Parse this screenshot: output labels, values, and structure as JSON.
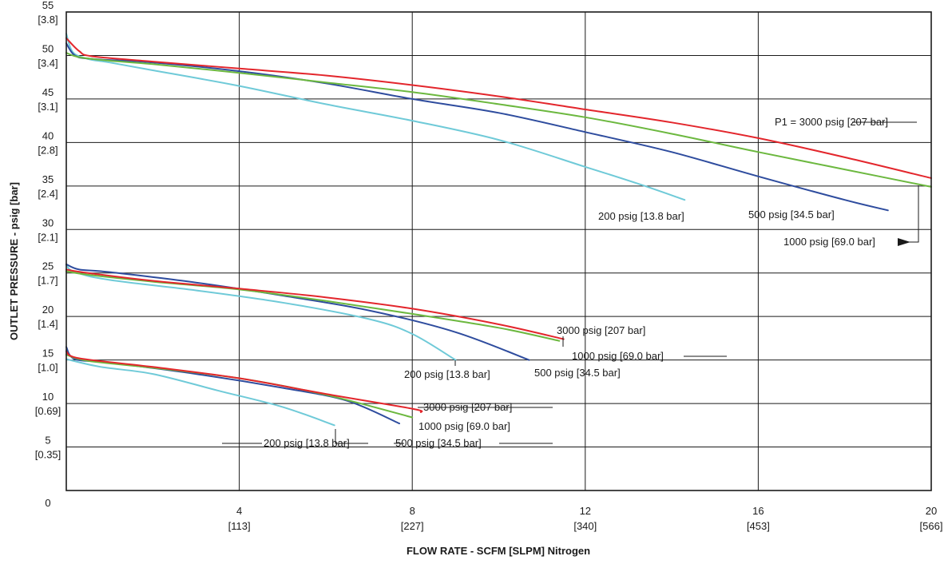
{
  "chart_data": {
    "type": "line",
    "xlabel": "FLOW RATE - SCFM [SLPM] Nitrogen",
    "ylabel": "OUTLET PRESSURE - psig [bar]",
    "xlim": [
      0,
      20
    ],
    "ylim": [
      0,
      55
    ],
    "grid": true,
    "x_ticks": [
      {
        "value": 4,
        "label": "4",
        "sub": "[113]"
      },
      {
        "value": 8,
        "label": "8",
        "sub": "[227]"
      },
      {
        "value": 12,
        "label": "12",
        "sub": "[340]"
      },
      {
        "value": 16,
        "label": "16",
        "sub": "[453]"
      },
      {
        "value": 20,
        "label": "20",
        "sub": "[566]"
      }
    ],
    "y_ticks": [
      {
        "value": 0,
        "label": "0",
        "sub": ""
      },
      {
        "value": 5,
        "label": "5",
        "sub": "[0.35]"
      },
      {
        "value": 10,
        "label": "10",
        "sub": "[0.69]"
      },
      {
        "value": 15,
        "label": "15",
        "sub": "[1.0]"
      },
      {
        "value": 20,
        "label": "20",
        "sub": "[1.4]"
      },
      {
        "value": 25,
        "label": "25",
        "sub": "[1.7]"
      },
      {
        "value": 30,
        "label": "30",
        "sub": "[2.1]"
      },
      {
        "value": 35,
        "label": "35",
        "sub": "[2.4]"
      },
      {
        "value": 40,
        "label": "40",
        "sub": "[2.8]"
      },
      {
        "value": 45,
        "label": "45",
        "sub": "[3.1]"
      },
      {
        "value": 50,
        "label": "50",
        "sub": "[3.4]"
      },
      {
        "value": 55,
        "label": "55",
        "sub": "[3.8]"
      }
    ],
    "colors": {
      "3000 psig": "#e3262c",
      "1000 psig": "#6cb83f",
      "500 psig": "#2e4c9e",
      "200 psig": "#6fcad8"
    },
    "series": [
      {
        "group": "50",
        "name": "3000 psig [207 bar]",
        "color": "#e3262c",
        "points": [
          [
            0,
            52.0
          ],
          [
            0.3,
            50.5
          ],
          [
            0.6,
            49.9
          ],
          [
            2,
            49.3
          ],
          [
            4,
            48.5
          ],
          [
            6,
            47.7
          ],
          [
            8,
            46.6
          ],
          [
            10,
            45.3
          ],
          [
            12,
            43.8
          ],
          [
            14,
            42.3
          ],
          [
            16,
            40.5
          ],
          [
            18,
            38.3
          ],
          [
            20,
            35.9
          ]
        ]
      },
      {
        "group": "50",
        "name": "1000 psig [69.0 bar]",
        "color": "#6cb83f",
        "points": [
          [
            0,
            50.3
          ],
          [
            0.3,
            49.8
          ],
          [
            1,
            49.4
          ],
          [
            2,
            49.0
          ],
          [
            4,
            48.0
          ],
          [
            6,
            46.9
          ],
          [
            8,
            45.8
          ],
          [
            10,
            44.4
          ],
          [
            12,
            42.9
          ],
          [
            14,
            41.0
          ],
          [
            16,
            38.9
          ],
          [
            18,
            36.9
          ],
          [
            20,
            34.9
          ]
        ]
      },
      {
        "group": "50",
        "name": "500 psig [34.5 bar]",
        "color": "#2e4c9e",
        "points": [
          [
            0,
            51.4
          ],
          [
            0.2,
            50.0
          ],
          [
            0.6,
            49.6
          ],
          [
            2,
            49.2
          ],
          [
            4,
            48.2
          ],
          [
            6,
            46.8
          ],
          [
            8,
            45.0
          ],
          [
            10,
            43.4
          ],
          [
            12,
            41.2
          ],
          [
            14,
            38.9
          ],
          [
            16,
            36.1
          ],
          [
            18,
            33.4
          ],
          [
            19,
            32.2
          ]
        ]
      },
      {
        "group": "50",
        "name": "200 psig [13.8 bar]",
        "color": "#6fcad8",
        "points": [
          [
            0,
            52.5
          ],
          [
            0.15,
            50.4
          ],
          [
            0.5,
            49.6
          ],
          [
            1,
            49.2
          ],
          [
            2,
            48.3
          ],
          [
            4,
            46.5
          ],
          [
            6,
            44.4
          ],
          [
            8,
            42.5
          ],
          [
            10,
            40.3
          ],
          [
            12,
            37.2
          ],
          [
            13.2,
            35.3
          ],
          [
            14.3,
            33.4
          ]
        ]
      },
      {
        "group": "25",
        "name": "3000 psig [207 bar]",
        "color": "#e3262c",
        "points": [
          [
            0,
            25.4
          ],
          [
            0.5,
            25.0
          ],
          [
            2,
            24.1
          ],
          [
            4,
            23.2
          ],
          [
            6,
            22.2
          ],
          [
            8,
            20.9
          ],
          [
            10,
            19.1
          ],
          [
            11.5,
            17.4
          ]
        ]
      },
      {
        "group": "25",
        "name": "1000 psig [69.0 bar]",
        "color": "#6cb83f",
        "points": [
          [
            0,
            25.2
          ],
          [
            0.5,
            24.8
          ],
          [
            2,
            24.0
          ],
          [
            4,
            23.1
          ],
          [
            6,
            21.8
          ],
          [
            8,
            20.3
          ],
          [
            10,
            18.7
          ],
          [
            11.4,
            17.2
          ]
        ]
      },
      {
        "group": "25",
        "name": "500 psig [34.5 bar]",
        "color": "#2e4c9e",
        "points": [
          [
            0,
            26.0
          ],
          [
            0.3,
            25.4
          ],
          [
            1,
            25.1
          ],
          [
            3,
            23.9
          ],
          [
            5,
            22.4
          ],
          [
            7,
            20.7
          ],
          [
            9,
            18.2
          ],
          [
            10.7,
            15.0
          ]
        ]
      },
      {
        "group": "25",
        "name": "200 psig [13.8 bar]",
        "color": "#6fcad8",
        "points": [
          [
            0,
            25.9
          ],
          [
            0.2,
            25.1
          ],
          [
            1,
            24.2
          ],
          [
            3,
            23.0
          ],
          [
            5,
            21.6
          ],
          [
            7,
            19.7
          ],
          [
            8,
            18.0
          ],
          [
            9,
            15.0
          ]
        ]
      },
      {
        "group": "15",
        "name": "3000 psig [207 bar]",
        "color": "#e3262c",
        "points": [
          [
            0,
            16.0
          ],
          [
            0.3,
            15.2
          ],
          [
            2,
            14.2
          ],
          [
            4,
            12.9
          ],
          [
            6,
            11.1
          ],
          [
            8,
            9.4
          ],
          [
            8.2,
            9.0
          ]
        ]
      },
      {
        "group": "15",
        "name": "1000 psig [69.0 bar]",
        "color": "#6cb83f",
        "points": [
          [
            0,
            15.6
          ],
          [
            0.5,
            14.9
          ],
          [
            2,
            14.1
          ],
          [
            4,
            12.9
          ],
          [
            6,
            11.0
          ],
          [
            8,
            8.4
          ]
        ]
      },
      {
        "group": "15",
        "name": "500 psig [34.5 bar]",
        "color": "#2e4c9e",
        "points": [
          [
            0,
            16.5
          ],
          [
            0.2,
            15.1
          ],
          [
            1,
            14.7
          ],
          [
            3,
            13.4
          ],
          [
            5,
            11.8
          ],
          [
            6.5,
            10.3
          ],
          [
            7.7,
            7.7
          ]
        ]
      },
      {
        "group": "15",
        "name": "200 psig [13.8 bar]",
        "color": "#6fcad8",
        "points": [
          [
            0,
            15.1
          ],
          [
            0.8,
            14.2
          ],
          [
            2,
            13.4
          ],
          [
            3.5,
            11.5
          ],
          [
            5,
            9.6
          ],
          [
            6.2,
            7.5
          ]
        ]
      }
    ],
    "annotations": [
      {
        "text": "P1 = 3000 psig [207 bar]"
      },
      {
        "text": "200 psig [13.8 bar]"
      },
      {
        "text": "500 psig [34.5 bar]"
      },
      {
        "text": "1000 psig [69.0 bar]"
      },
      {
        "text": "3000 psig [207 bar]"
      },
      {
        "text": "1000 psig [69.0 bar]"
      },
      {
        "text": "200 psig [13.8 bar]"
      },
      {
        "text": "500 psig [34.5 bar]"
      },
      {
        "text": "3000 psig [207 bar]"
      },
      {
        "text": "1000 psig [69.0 bar]"
      },
      {
        "text": "200 psig [13.8 bar]"
      },
      {
        "text": "500 psig [34.5 bar]"
      }
    ]
  }
}
